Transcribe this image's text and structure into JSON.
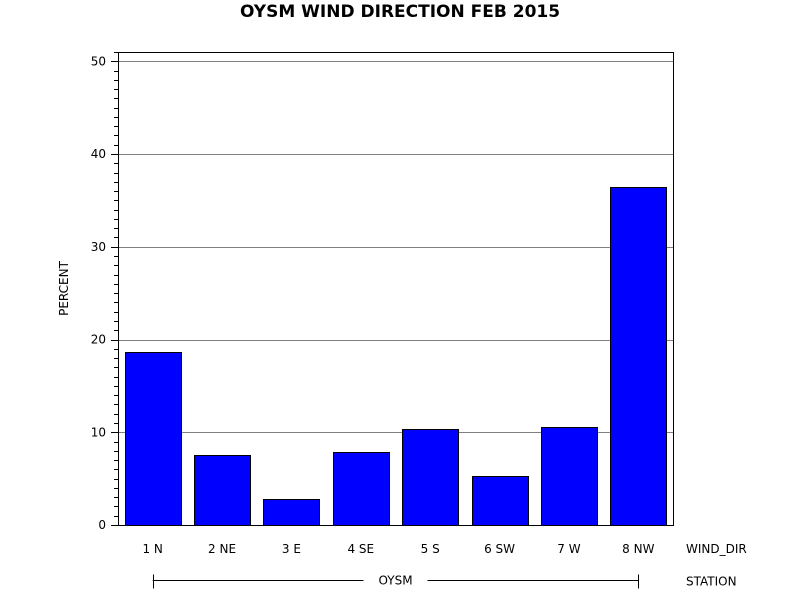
{
  "chart_data": {
    "type": "bar",
    "title": "OYSM WIND DIRECTION FEB 2015",
    "ylabel": "PERCENT",
    "xlabel": "WIND_DIR",
    "group_axis_label": "STATION",
    "group_value": "OYSM",
    "categories": [
      "1 N",
      "2 NE",
      "3 E",
      "4 SE",
      "5 S",
      "6 SW",
      "7 W",
      "8 NW"
    ],
    "values": [
      18.6,
      7.5,
      2.8,
      7.9,
      10.4,
      5.3,
      10.6,
      36.4
    ],
    "ylim": [
      0,
      51
    ],
    "yticks": [
      0,
      10,
      20,
      30,
      40,
      50
    ],
    "grid": true,
    "legend": "none",
    "bar_color": "#0000ff",
    "bar_outline_color": "#000000",
    "grid_color": "#808080"
  }
}
